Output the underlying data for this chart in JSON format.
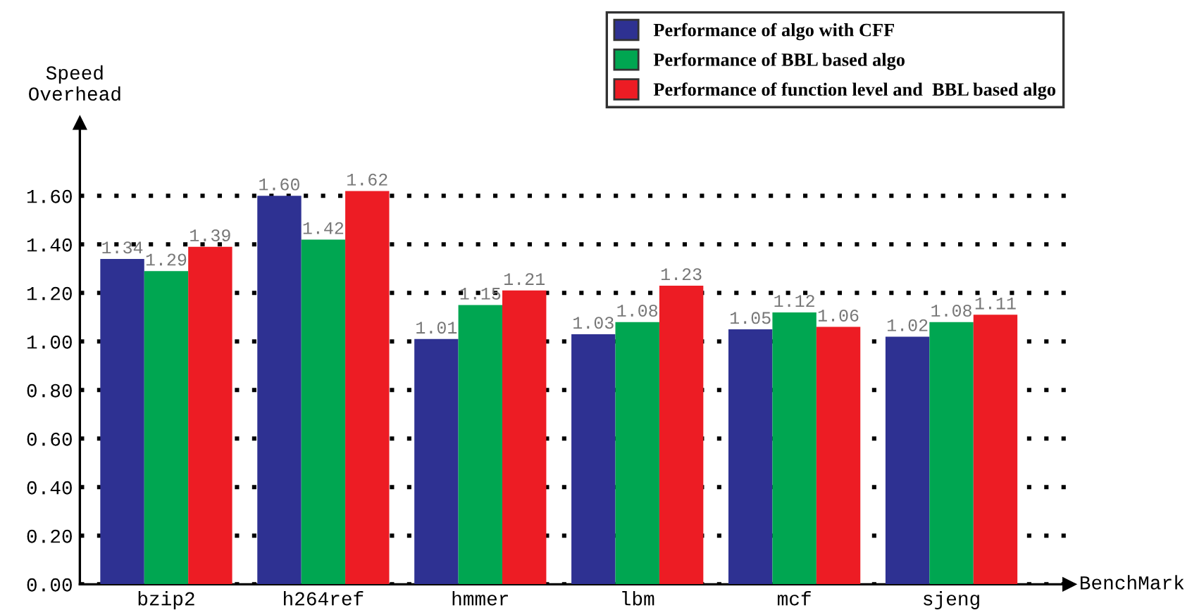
{
  "chart_data": {
    "type": "bar",
    "xlabel": "BenchMark",
    "ylabel": "Speed\nOverhead",
    "categories": [
      "bzip2",
      "h264ref",
      "hmmer",
      "lbm",
      "mcf",
      "sjeng"
    ],
    "series": [
      {
        "name": "Performance of algo with CFF",
        "color": "#2e3192",
        "values": [
          1.34,
          1.6,
          1.01,
          1.03,
          1.05,
          1.02
        ],
        "value_labels": [
          "1.34",
          "1.60",
          "1.01",
          "1.03",
          "1.05",
          "1.02"
        ]
      },
      {
        "name": "Performance of BBL based algo",
        "color": "#00a651",
        "values": [
          1.29,
          1.42,
          1.15,
          1.08,
          1.12,
          1.08
        ],
        "value_labels": [
          "1.29",
          "1.42",
          "1.15",
          "1.08",
          "1.12",
          "1.08"
        ]
      },
      {
        "name": "Performance of function level and  BBL based algo",
        "color": "#ed1c24",
        "values": [
          1.39,
          1.62,
          1.21,
          1.23,
          1.06,
          1.11
        ],
        "value_labels": [
          "1.39",
          "1.62",
          "1.21",
          "1.23",
          "1.06",
          "1.11"
        ]
      }
    ],
    "ylim": [
      0,
      1.9
    ],
    "yticks": [
      {
        "value": 0,
        "label": "0.00"
      },
      {
        "value": 0.2,
        "label": "0.20"
      },
      {
        "value": 0.4,
        "label": "0.40"
      },
      {
        "value": 0.6,
        "label": "0.60"
      },
      {
        "value": 0.8,
        "label": "0.80"
      },
      {
        "value": 1.0,
        "label": "1.00"
      },
      {
        "value": 1.2,
        "label": "1.20"
      },
      {
        "value": 1.4,
        "label": "1.40"
      },
      {
        "value": 1.6,
        "label": "1.60"
      }
    ],
    "grid": "y",
    "legend": "top right"
  }
}
